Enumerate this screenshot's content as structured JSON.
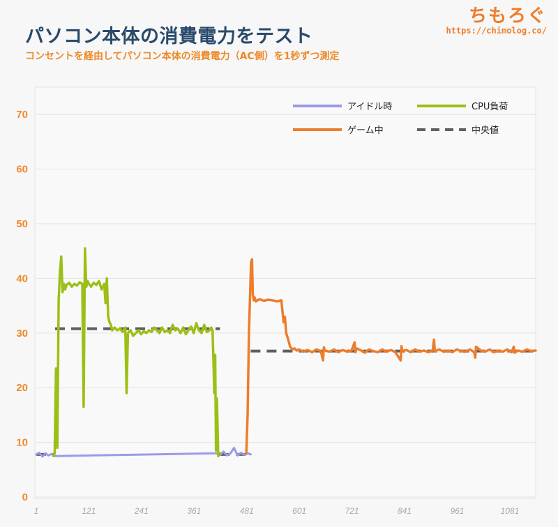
{
  "header": {
    "title": "パソコン本体の消費電力をテスト",
    "subtitle": "コンセントを経由してパソコン本体の消費電力（AC側）を1秒ずつ測定",
    "logo_text": "ちもろぐ",
    "logo_url": "https://chimolog.co/"
  },
  "colors": {
    "idle": "#9a9ae8",
    "cpu": "#9cbf17",
    "game": "#ee7d2b",
    "median": "#606060",
    "ytick": "#ee8a2a",
    "xtick": "#a8a8a8"
  },
  "chart_data": {
    "type": "line",
    "title": "パソコン本体の消費電力をテスト",
    "subtitle": "コンセントを経由してパソコン本体の消費電力（AC側）を1秒ずつ測定",
    "xlabel": "",
    "ylabel": "",
    "xlim": [
      1,
      1140
    ],
    "ylim": [
      0,
      75
    ],
    "x_ticks": [
      1,
      121,
      241,
      361,
      481,
      601,
      721,
      841,
      961,
      1081
    ],
    "y_ticks": [
      0,
      10,
      20,
      30,
      40,
      50,
      60,
      70
    ],
    "grid": "horizontal",
    "legend": "top-right",
    "series": [
      {
        "name": "アイドル時",
        "key": "idle",
        "x": [
          1,
          8,
          15,
          22,
          29,
          36,
          43,
          412,
          420,
          428,
          436,
          444,
          452,
          460,
          468,
          476,
          484,
          490
        ],
        "y": [
          7.8,
          8.1,
          7.4,
          8.0,
          7.6,
          7.9,
          7.5,
          8.0,
          7.7,
          8.3,
          7.6,
          8.0,
          9.0,
          7.6,
          8.1,
          7.7,
          8.0,
          7.8
        ]
      },
      {
        "name": "CPU負荷",
        "key": "cpu",
        "x": [
          40,
          43,
          46,
          49,
          52,
          55,
          58,
          61,
          64,
          67,
          70,
          76,
          82,
          88,
          94,
          100,
          106,
          109,
          112,
          115,
          118,
          121,
          126,
          132,
          138,
          144,
          150,
          156,
          159,
          162,
          165,
          168,
          171,
          174,
          180,
          186,
          192,
          198,
          204,
          207,
          210,
          216,
          222,
          228,
          234,
          240,
          246,
          252,
          258,
          264,
          270,
          276,
          282,
          288,
          294,
          300,
          306,
          312,
          318,
          324,
          330,
          336,
          342,
          348,
          354,
          360,
          366,
          372,
          378,
          384,
          390,
          396,
          400,
          403,
          405,
          407,
          409,
          411,
          413,
          416,
          420
        ],
        "y": [
          7.5,
          8.0,
          23.5,
          9.0,
          36.0,
          41.0,
          44.0,
          37.5,
          39.0,
          38.0,
          38.8,
          39.2,
          38.5,
          39.0,
          38.7,
          39.3,
          39.0,
          16.5,
          45.5,
          38.5,
          39.5,
          39.0,
          38.5,
          39.2,
          38.8,
          39.5,
          38.0,
          39.0,
          35.5,
          40.0,
          33.0,
          32.0,
          31.5,
          30.5,
          31.0,
          30.5,
          30.8,
          30.2,
          31.0,
          19.0,
          30.0,
          30.5,
          29.5,
          30.0,
          30.5,
          29.8,
          30.3,
          30.0,
          30.5,
          30.2,
          31.0,
          30.5,
          30.0,
          31.0,
          30.2,
          30.5,
          30.0,
          31.5,
          30.5,
          30.8,
          30.0,
          31.0,
          29.8,
          30.5,
          31.2,
          30.0,
          31.8,
          30.5,
          30.0,
          31.5,
          30.2,
          30.5,
          31.0,
          30.5,
          25.0,
          19.0,
          26.0,
          8.5,
          18.0,
          7.5,
          8.0
        ]
      },
      {
        "name": "ゲーム中",
        "key": "game",
        "x": [
          480,
          483,
          486,
          489,
          491,
          493,
          495,
          497,
          499,
          502,
          510,
          520,
          530,
          540,
          550,
          560,
          565,
          568,
          571,
          575,
          580,
          585,
          590,
          595,
          600,
          610,
          620,
          630,
          640,
          650,
          655,
          657,
          659,
          670,
          680,
          690,
          700,
          710,
          720,
          727,
          729,
          731,
          740,
          750,
          760,
          770,
          780,
          790,
          800,
          810,
          820,
          832,
          834,
          836,
          845,
          855,
          865,
          875,
          885,
          895,
          905,
          908,
          910,
          920,
          930,
          940,
          950,
          960,
          970,
          980,
          990,
          1000,
          1002,
          1004,
          1015,
          1025,
          1035,
          1045,
          1055,
          1065,
          1075,
          1085,
          1090,
          1092,
          1100,
          1110,
          1120,
          1130,
          1140
        ],
        "y": [
          8.0,
          15.0,
          30.0,
          38.0,
          43.0,
          43.5,
          37.0,
          36.0,
          36.5,
          35.8,
          36.2,
          35.9,
          36.1,
          36.0,
          35.8,
          36.0,
          32.0,
          33.0,
          30.0,
          29.0,
          27.5,
          27.0,
          27.2,
          26.8,
          27.0,
          26.6,
          26.9,
          26.5,
          27.0,
          26.7,
          25.0,
          27.4,
          26.8,
          26.6,
          27.0,
          26.5,
          26.9,
          26.6,
          26.8,
          28.3,
          26.5,
          27.2,
          26.9,
          26.4,
          27.0,
          26.7,
          26.5,
          27.0,
          26.6,
          26.9,
          26.5,
          25.0,
          27.6,
          26.7,
          26.9,
          26.5,
          27.0,
          26.6,
          26.8,
          26.5,
          26.8,
          28.8,
          26.7,
          27.0,
          26.6,
          26.8,
          26.5,
          27.0,
          26.7,
          26.6,
          27.0,
          26.5,
          25.5,
          27.5,
          26.8,
          26.6,
          27.0,
          26.5,
          26.8,
          26.6,
          27.0,
          26.5,
          27.5,
          26.4,
          26.8,
          26.6,
          27.0,
          26.7,
          26.8
        ]
      },
      {
        "name": "中央値",
        "key": "median",
        "dashed": true,
        "segments": [
          {
            "x": [
              1,
              44
            ],
            "y": 7.8
          },
          {
            "x": [
              44,
              420
            ],
            "y": 30.8
          },
          {
            "x": [
              420,
              490
            ],
            "y": 7.8
          },
          {
            "x": [
              490,
              1140
            ],
            "y": 26.7
          }
        ]
      }
    ]
  }
}
